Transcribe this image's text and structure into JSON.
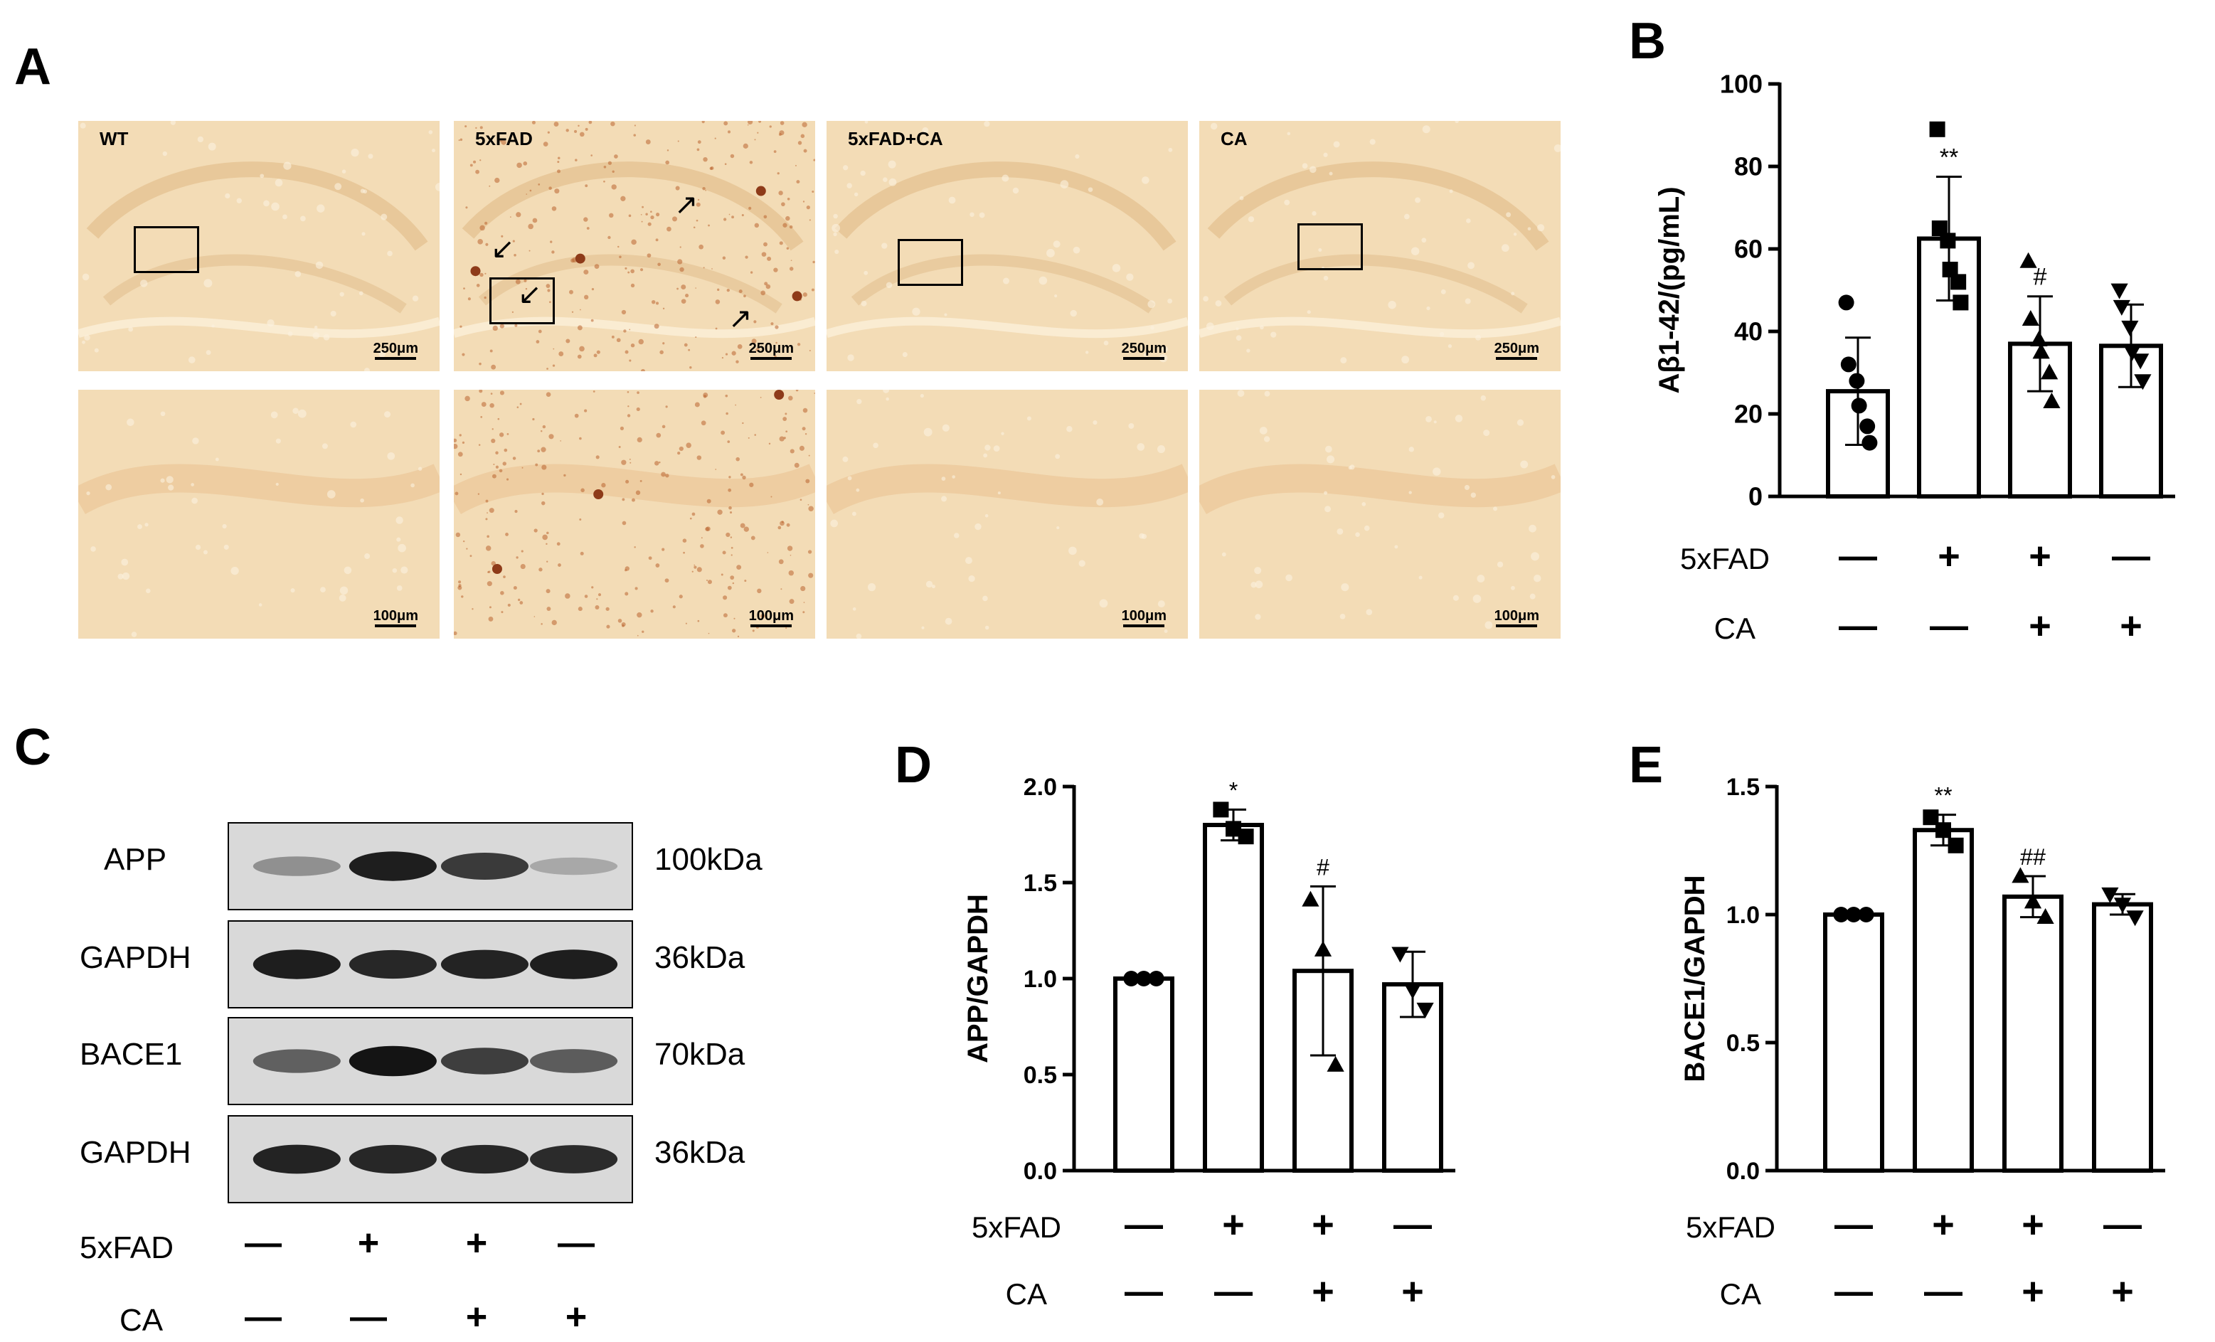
{
  "panels": {
    "A": "A",
    "B": "B",
    "C": "C",
    "D": "D",
    "E": "E"
  },
  "micrographs": {
    "top_labels": [
      "WT",
      "5xFAD",
      "5xFAD+CA",
      "CA"
    ],
    "top_scale": "250μm",
    "bottom_scale": "100μm"
  },
  "western_blot": {
    "rows": [
      {
        "label": "APP",
        "size": "100kDa"
      },
      {
        "label": "GAPDH",
        "size": "36kDa"
      },
      {
        "label": "BACE1",
        "size": "70kDa"
      },
      {
        "label": "GAPDH",
        "size": "36kDa"
      }
    ],
    "conditions": {
      "row1_label": "5xFAD",
      "row2_label": "CA",
      "row1": [
        "—",
        "+",
        "+",
        "—"
      ],
      "row2": [
        "—",
        "—",
        "+",
        "+"
      ]
    }
  },
  "colors": {
    "tissue_bg": "#f3dcb6",
    "stain": "#b9652f",
    "bar_fill": "#ffffff",
    "ink": "#000000"
  },
  "chart_data": [
    {
      "panel": "B",
      "type": "bar",
      "ylabel": "Aβ1-42/(pg/mL)",
      "ylim": [
        0,
        100
      ],
      "yticks": [
        0,
        20,
        40,
        60,
        80,
        100
      ],
      "categories": [
        "WT",
        "5xFAD",
        "5xFAD+CA",
        "CA"
      ],
      "values": [
        25.5,
        62.5,
        37,
        36.5
      ],
      "errors": [
        13,
        15,
        11.5,
        10
      ],
      "markers": [
        "circle",
        "square",
        "triangle-up",
        "triangle-down"
      ],
      "points": [
        [
          47,
          32,
          28,
          22,
          17,
          13
        ],
        [
          89,
          65,
          62,
          55,
          52,
          47
        ],
        [
          57,
          43,
          38,
          35,
          30,
          23
        ],
        [
          50,
          46,
          41,
          35,
          33,
          28
        ]
      ],
      "annotations": [
        "",
        "**",
        "#",
        ""
      ],
      "row1_label": "5xFAD",
      "row2_label": "CA",
      "row1": [
        "—",
        "+",
        "+",
        "—"
      ],
      "row2": [
        "—",
        "—",
        "+",
        "+"
      ]
    },
    {
      "panel": "D",
      "type": "bar",
      "ylabel": "APP/GAPDH",
      "ylim": [
        0,
        2.0
      ],
      "yticks": [
        "0.0",
        "0.5",
        "1.0",
        "1.5",
        "2.0"
      ],
      "categories": [
        "WT",
        "5xFAD",
        "5xFAD+CA",
        "CA"
      ],
      "values": [
        1.0,
        1.8,
        1.04,
        0.97
      ],
      "errors": [
        0.0,
        0.08,
        0.44,
        0.17
      ],
      "markers": [
        "circle",
        "square",
        "triangle-up",
        "triangle-down"
      ],
      "points": [
        [
          1.0,
          1.0,
          1.0
        ],
        [
          1.88,
          1.78,
          1.74
        ],
        [
          1.41,
          1.15,
          0.55
        ],
        [
          1.13,
          0.94,
          0.84
        ]
      ],
      "annotations": [
        "",
        "*",
        "#",
        ""
      ],
      "row1_label": "5xFAD",
      "row2_label": "CA",
      "row1": [
        "—",
        "+",
        "+",
        "—"
      ],
      "row2": [
        "—",
        "—",
        "+",
        "+"
      ]
    },
    {
      "panel": "E",
      "type": "bar",
      "ylabel": "BACE1/GAPDH",
      "ylim": [
        0,
        1.5
      ],
      "yticks": [
        "0.0",
        "0.5",
        "1.0",
        "1.5"
      ],
      "categories": [
        "WT",
        "5xFAD",
        "5xFAD+CA",
        "CA"
      ],
      "values": [
        1.0,
        1.33,
        1.07,
        1.04
      ],
      "errors": [
        0.0,
        0.06,
        0.08,
        0.04
      ],
      "markers": [
        "circle",
        "square",
        "triangle-up",
        "triangle-down"
      ],
      "points": [
        [
          1.0,
          1.0,
          1.0
        ],
        [
          1.38,
          1.33,
          1.27
        ],
        [
          1.15,
          1.05,
          0.99
        ],
        [
          1.08,
          1.04,
          0.99
        ]
      ],
      "annotations": [
        "",
        "**",
        "##",
        ""
      ],
      "row1_label": "5xFAD",
      "row2_label": "CA",
      "row1": [
        "—",
        "+",
        "+",
        "—"
      ],
      "row2": [
        "—",
        "—",
        "+",
        "+"
      ]
    }
  ]
}
